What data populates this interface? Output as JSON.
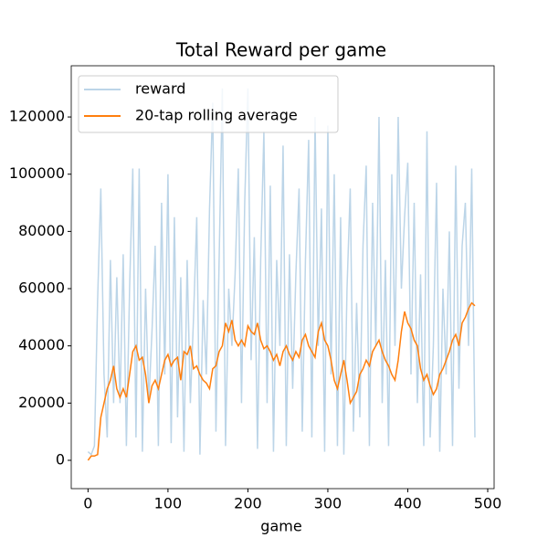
{
  "chart_data": {
    "type": "line",
    "title": "Total Reward per game",
    "x_label": "game",
    "x": [
      0,
      4,
      8,
      12,
      16,
      20,
      24,
      28,
      32,
      36,
      40,
      44,
      48,
      52,
      56,
      60,
      64,
      68,
      72,
      76,
      80,
      84,
      88,
      92,
      96,
      100,
      104,
      108,
      112,
      116,
      120,
      124,
      128,
      132,
      136,
      140,
      144,
      148,
      152,
      156,
      160,
      164,
      168,
      172,
      176,
      180,
      184,
      188,
      192,
      196,
      200,
      204,
      208,
      212,
      216,
      220,
      224,
      228,
      232,
      236,
      240,
      244,
      248,
      252,
      256,
      260,
      264,
      268,
      272,
      276,
      280,
      284,
      288,
      292,
      296,
      300,
      304,
      308,
      312,
      316,
      320,
      324,
      328,
      332,
      336,
      340,
      344,
      348,
      352,
      356,
      360,
      364,
      368,
      372,
      376,
      380,
      384,
      388,
      392,
      396,
      400,
      404,
      408,
      412,
      416,
      420,
      424,
      428,
      432,
      436,
      440,
      444,
      448,
      452,
      456,
      460,
      464,
      468,
      472,
      476,
      480,
      484
    ],
    "series": [
      {
        "name": "reward",
        "color": "#bcd5e8",
        "values": [
          3000,
          2000,
          5000,
          56000,
          95000,
          30000,
          8000,
          70000,
          20000,
          64000,
          20000,
          72000,
          5000,
          60000,
          102000,
          8000,
          102000,
          3000,
          60000,
          20000,
          45000,
          75000,
          5000,
          90000,
          30000,
          100000,
          6000,
          85000,
          15000,
          64000,
          3000,
          70000,
          20000,
          50000,
          85000,
          2000,
          56000,
          30000,
          88000,
          125000,
          10000,
          70000,
          130000,
          5000,
          60000,
          40000,
          65000,
          102000,
          20000,
          90000,
          130000,
          35000,
          78000,
          4000,
          70000,
          115000,
          20000,
          96000,
          3000,
          70000,
          40000,
          110000,
          5000,
          72000,
          25000,
          65000,
          95000,
          10000,
          70000,
          112000,
          8000,
          120000,
          40000,
          88000,
          3000,
          117000,
          30000,
          100000,
          5000,
          85000,
          2000,
          60000,
          95000,
          10000,
          55000,
          15000,
          75000,
          103000,
          5000,
          90000,
          40000,
          120000,
          20000,
          70000,
          5000,
          100000,
          40000,
          120000,
          60000,
          85000,
          104000,
          30000,
          90000,
          20000,
          65000,
          5000,
          115000,
          8000,
          40000,
          97000,
          3000,
          60000,
          30000,
          80000,
          5000,
          103000,
          25000,
          75000,
          90000,
          40000,
          102000,
          8000
        ]
      },
      {
        "name": "20-tap rolling average",
        "color": "#ff7f0e",
        "values": [
          0,
          1500,
          1500,
          2000,
          15000,
          20000,
          25000,
          28000,
          33000,
          25000,
          22000,
          25000,
          22000,
          30000,
          38000,
          40000,
          35000,
          36000,
          30000,
          20000,
          26000,
          28000,
          25000,
          30000,
          35000,
          37000,
          33000,
          35000,
          36000,
          28000,
          38000,
          37000,
          40000,
          32000,
          33000,
          30000,
          28000,
          27000,
          25000,
          32000,
          33000,
          38000,
          40000,
          48000,
          45000,
          49000,
          42000,
          40000,
          42000,
          40000,
          47000,
          45000,
          44000,
          48000,
          42000,
          39000,
          40000,
          38000,
          35000,
          37000,
          33000,
          38000,
          40000,
          37000,
          35000,
          38000,
          36000,
          42000,
          44000,
          40000,
          38000,
          36000,
          45000,
          48000,
          42000,
          40000,
          35000,
          28000,
          25000,
          30000,
          35000,
          28000,
          20000,
          22000,
          24000,
          30000,
          32000,
          35000,
          33000,
          38000,
          40000,
          42000,
          38000,
          35000,
          33000,
          30000,
          28000,
          35000,
          45000,
          52000,
          48000,
          46000,
          42000,
          40000,
          32000,
          28000,
          30000,
          26000,
          23000,
          25000,
          30000,
          32000,
          35000,
          38000,
          42000,
          44000,
          40000,
          48000,
          50000,
          53000,
          55000,
          54000
        ]
      }
    ],
    "xlim": [
      -21,
      508
    ],
    "ylim": [
      -9900,
      137900
    ],
    "xticks": [
      0,
      100,
      200,
      300,
      400,
      500
    ],
    "yticks": [
      0,
      20000,
      40000,
      60000,
      80000,
      100000,
      120000
    ],
    "legend": "upper left"
  }
}
